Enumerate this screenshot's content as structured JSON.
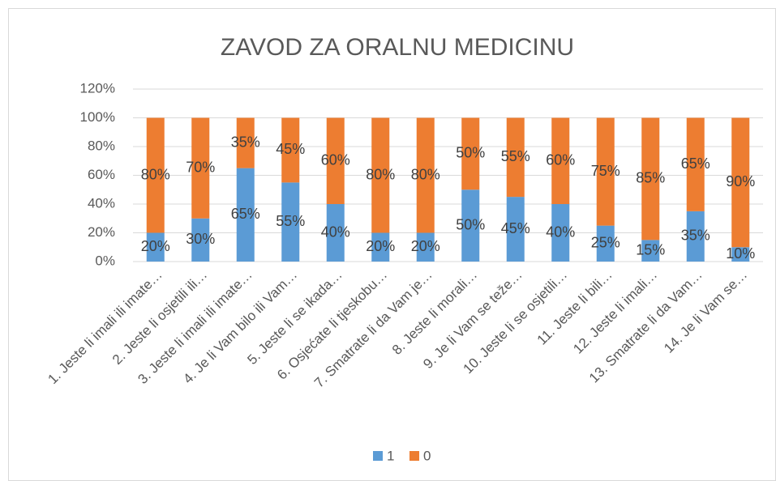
{
  "chart_data": {
    "type": "stacked_bar",
    "title": "ZAVOD ZA ORALNU MEDICINU",
    "categories": [
      "1. Jeste li imali ili imate…",
      "2. Jeste li osjetili ili…",
      "3. Jeste li imali ili imate…",
      "4. Je li Vam bilo ili Vam…",
      "5. Jeste li se ikada…",
      "6. Osjećate li tjeskobu…",
      "7. Smatrate li da Vam je…",
      "8. Jeste li morali…",
      "9. Je li Vam se teže…",
      "10. Jeste li se osjetili…",
      "11. Jeste li bili…",
      "12. Jeste li imali…",
      "13. Smatrate li da Vam…",
      "14. Je li Vam se…"
    ],
    "series": [
      {
        "name": "1",
        "color": "#5b9bd5",
        "values": [
          20,
          30,
          65,
          55,
          40,
          20,
          20,
          50,
          45,
          40,
          25,
          15,
          35,
          10
        ],
        "value_labels": [
          "20%",
          "30%",
          "65%",
          "55%",
          "40%",
          "20%",
          "20%",
          "50%",
          "45%",
          "40%",
          "25%",
          "15%",
          "35%",
          "10%"
        ]
      },
      {
        "name": "0",
        "color": "#ed7d31",
        "values": [
          80,
          70,
          35,
          45,
          60,
          80,
          80,
          50,
          55,
          60,
          75,
          85,
          65,
          90
        ],
        "value_labels": [
          "80%",
          "70%",
          "35%",
          "45%",
          "60%",
          "80%",
          "80%",
          "50%",
          "55%",
          "60%",
          "75%",
          "85%",
          "65%",
          "90%"
        ]
      }
    ],
    "ylim": [
      0,
      120
    ],
    "yticks": [
      {
        "value": 0,
        "label": "0%"
      },
      {
        "value": 20,
        "label": "20%"
      },
      {
        "value": 40,
        "label": "40%"
      },
      {
        "value": 60,
        "label": "60%"
      },
      {
        "value": 80,
        "label": "80%"
      },
      {
        "value": 100,
        "label": "100%"
      },
      {
        "value": 120,
        "label": "120%"
      }
    ],
    "grid": true,
    "legend": "bottom"
  }
}
